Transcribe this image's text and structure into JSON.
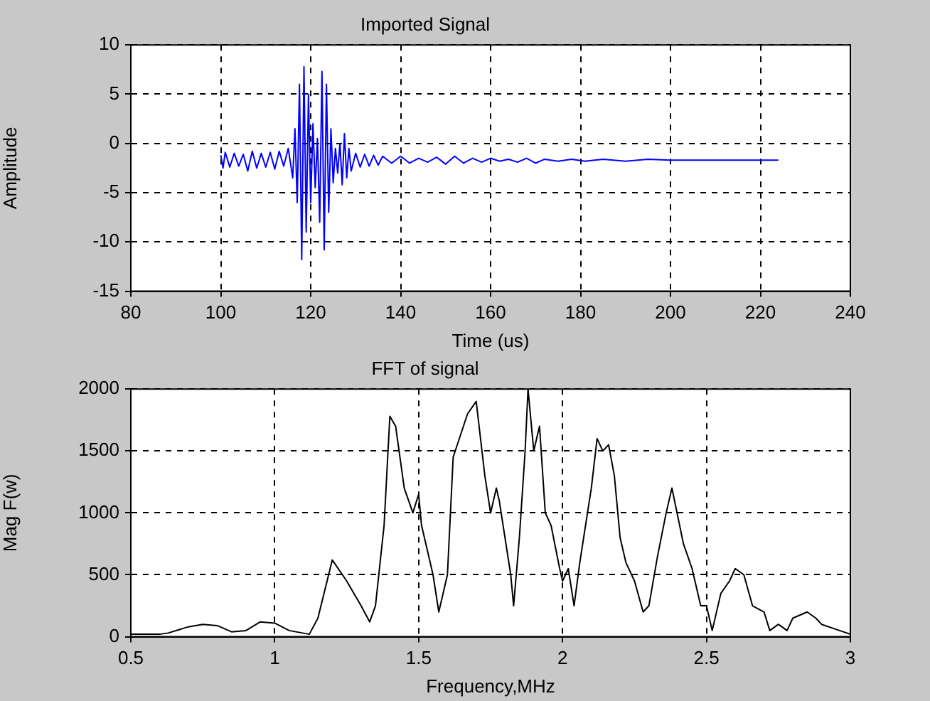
{
  "chart_data": [
    {
      "type": "line",
      "title": "Imported Signal",
      "xlabel": "Time (us)",
      "ylabel": "Amplitude",
      "xlim": [
        80,
        240
      ],
      "xticks": [
        80,
        100,
        120,
        140,
        160,
        180,
        200,
        220,
        240
      ],
      "ylim": [
        -15,
        10
      ],
      "yticks": [
        -15,
        -10,
        -5,
        0,
        5,
        10
      ],
      "grid": true,
      "series": [
        {
          "color": "#0000ff",
          "x": [
            100,
            100.5,
            101,
            102,
            103,
            104,
            105,
            106,
            107,
            108,
            109,
            110,
            111,
            112,
            113,
            114,
            115,
            116,
            116.5,
            117,
            117.5,
            118,
            118.5,
            119,
            119.5,
            120,
            120.5,
            121,
            121.5,
            122,
            122.5,
            123,
            123.5,
            124,
            124.5,
            125,
            125.5,
            126,
            126.5,
            127,
            127.5,
            128,
            128.5,
            129,
            130,
            131,
            132,
            133,
            134,
            135,
            136,
            138,
            140,
            142,
            144,
            146,
            148,
            150,
            152,
            154,
            156,
            158,
            160,
            162,
            164,
            166,
            168,
            170,
            172,
            175,
            178,
            181,
            185,
            190,
            195,
            200,
            210,
            220,
            224
          ],
          "values": [
            -1.2,
            -2.5,
            -0.9,
            -2.4,
            -1.0,
            -2.3,
            -1.1,
            -2.8,
            -0.8,
            -2.5,
            -1.0,
            -2.4,
            -0.9,
            -2.6,
            -0.8,
            -2.3,
            -0.5,
            -3.5,
            1.5,
            -6,
            6,
            -11.8,
            7.8,
            -9,
            5,
            -6,
            2,
            -4.5,
            0.5,
            -8,
            7.3,
            -10.8,
            6,
            -7,
            1.5,
            -4,
            -0.5,
            -3,
            0,
            -4.2,
            1.0,
            -3.5,
            -0.5,
            -2.8,
            -1.0,
            -2.4,
            -1.1,
            -2.3,
            -1.2,
            -2.2,
            -1.3,
            -2.0,
            -1.3,
            -2.0,
            -1.5,
            -1.9,
            -1.4,
            -2.1,
            -1.3,
            -2.0,
            -1.5,
            -1.9,
            -1.5,
            -1.8,
            -1.6,
            -1.9,
            -1.5,
            -2.0,
            -1.6,
            -1.8,
            -1.6,
            -1.8,
            -1.6,
            -1.8,
            -1.6,
            -1.7,
            -1.7,
            -1.7,
            -1.7
          ]
        }
      ]
    },
    {
      "type": "line",
      "title": "FFT of signal",
      "xlabel": "Frequency,MHz",
      "ylabel": "Mag F(w)",
      "xlim": [
        0.5,
        3
      ],
      "xticks": [
        0.5,
        1,
        1.5,
        2,
        2.5,
        3
      ],
      "ylim": [
        0,
        2000
      ],
      "yticks": [
        0,
        500,
        1000,
        1500,
        2000
      ],
      "grid": true,
      "series": [
        {
          "color": "#000000",
          "x": [
            0.5,
            0.6,
            0.63,
            0.7,
            0.75,
            0.8,
            0.85,
            0.9,
            0.95,
            1.0,
            1.05,
            1.12,
            1.15,
            1.2,
            1.25,
            1.3,
            1.33,
            1.35,
            1.38,
            1.4,
            1.42,
            1.45,
            1.48,
            1.5,
            1.51,
            1.55,
            1.57,
            1.6,
            1.62,
            1.67,
            1.7,
            1.73,
            1.75,
            1.77,
            1.78,
            1.82,
            1.83,
            1.85,
            1.87,
            1.88,
            1.9,
            1.92,
            1.94,
            1.96,
            1.99,
            2.0,
            2.02,
            2.04,
            2.06,
            2.1,
            2.12,
            2.14,
            2.16,
            2.18,
            2.2,
            2.22,
            2.25,
            2.28,
            2.3,
            2.33,
            2.36,
            2.38,
            2.42,
            2.45,
            2.48,
            2.5,
            2.52,
            2.55,
            2.58,
            2.6,
            2.63,
            2.66,
            2.7,
            2.72,
            2.75,
            2.78,
            2.8,
            2.85,
            2.88,
            2.9,
            2.95,
            3.0
          ],
          "values": [
            20,
            20,
            30,
            80,
            100,
            90,
            40,
            50,
            120,
            110,
            50,
            20,
            150,
            620,
            450,
            250,
            120,
            250,
            900,
            1780,
            1700,
            1200,
            1000,
            1150,
            900,
            500,
            200,
            500,
            1450,
            1800,
            1900,
            1300,
            1000,
            1200,
            1100,
            500,
            250,
            800,
            1500,
            2000,
            1500,
            1700,
            1000,
            900,
            550,
            450,
            550,
            250,
            600,
            1200,
            1600,
            1500,
            1550,
            1300,
            800,
            600,
            450,
            200,
            250,
            650,
            1000,
            1200,
            750,
            550,
            250,
            250,
            50,
            350,
            450,
            550,
            500,
            250,
            200,
            50,
            100,
            50,
            150,
            200,
            150,
            100,
            60,
            20
          ]
        }
      ]
    }
  ]
}
